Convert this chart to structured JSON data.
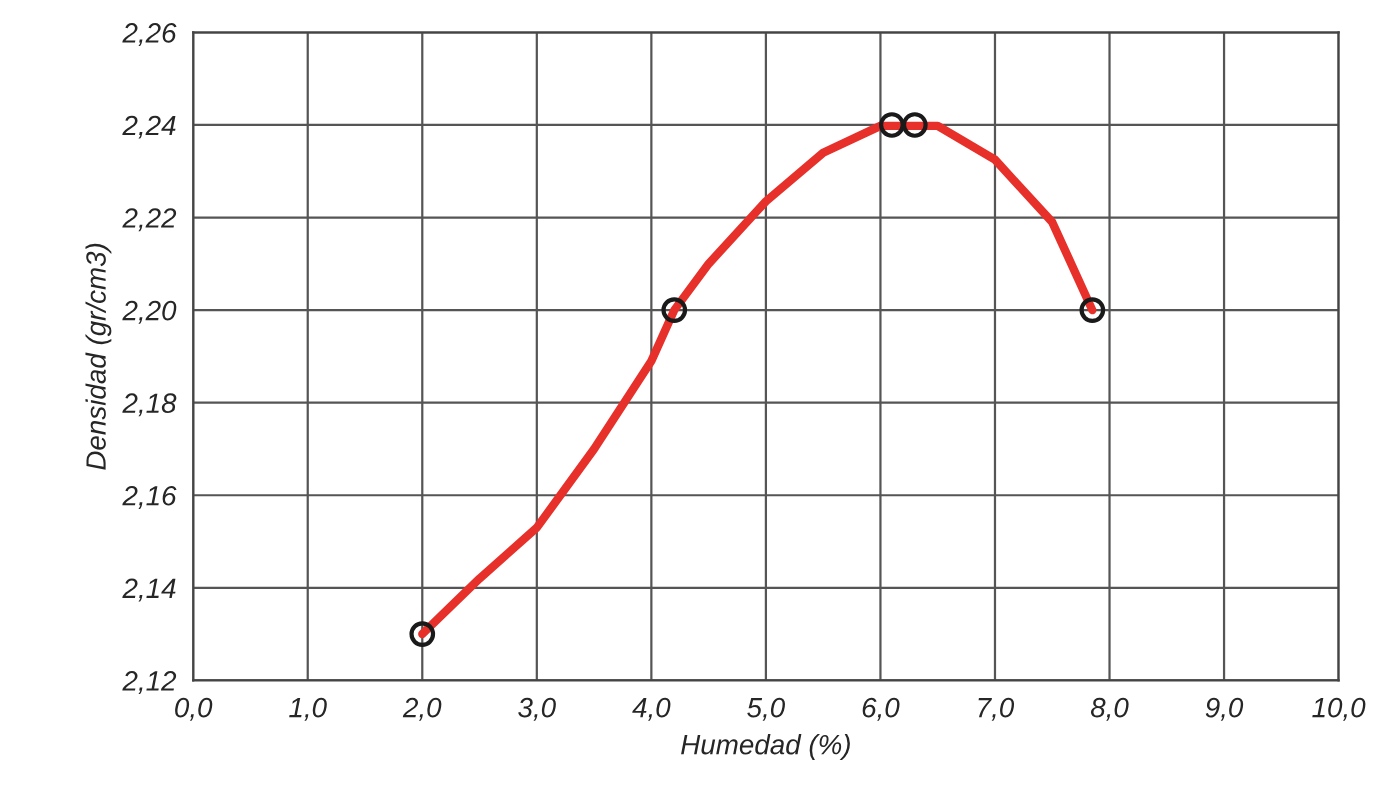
{
  "chart_data": {
    "type": "line",
    "xlabel": "Humedad (%)",
    "ylabel": "Densidad (gr/cm3)",
    "xlim": [
      0,
      10
    ],
    "ylim": [
      2.12,
      2.26
    ],
    "xticks": [
      {
        "value": 0,
        "label": "0,0"
      },
      {
        "value": 1,
        "label": "1,0"
      },
      {
        "value": 2,
        "label": "2,0"
      },
      {
        "value": 3,
        "label": "3,0"
      },
      {
        "value": 4,
        "label": "4,0"
      },
      {
        "value": 5,
        "label": "5,0"
      },
      {
        "value": 6,
        "label": "6,0"
      },
      {
        "value": 7,
        "label": "7,0"
      },
      {
        "value": 8,
        "label": "8,0"
      },
      {
        "value": 9,
        "label": "9,0"
      },
      {
        "value": 10,
        "label": "10,0"
      }
    ],
    "yticks": [
      {
        "value": 2.12,
        "label": "2,12"
      },
      {
        "value": 2.14,
        "label": "2,14"
      },
      {
        "value": 2.16,
        "label": "2,16"
      },
      {
        "value": 2.18,
        "label": "2,18"
      },
      {
        "value": 2.2,
        "label": "2,20"
      },
      {
        "value": 2.22,
        "label": "2,22"
      },
      {
        "value": 2.24,
        "label": "2,24"
      },
      {
        "value": 2.26,
        "label": "2,26"
      }
    ],
    "grid": true,
    "series": [
      {
        "color": "#e8302a",
        "x": [
          2.0,
          2.5,
          3.0,
          3.5,
          4.0,
          4.2,
          4.5,
          5.0,
          5.5,
          6.0,
          6.5,
          7.0,
          7.5,
          7.85
        ],
        "values": [
          2.13,
          2.142,
          2.153,
          2.17,
          2.189,
          2.2,
          2.21,
          2.2235,
          2.234,
          2.2398,
          2.2398,
          2.2325,
          2.219,
          2.2
        ]
      },
      {
        "type": "scatter",
        "marker": "circle",
        "color": "#1a1a1a",
        "x": [
          2.0,
          4.2,
          6.1,
          6.3,
          7.85
        ],
        "values": [
          2.13,
          2.2,
          2.24,
          2.24,
          2.2
        ]
      }
    ]
  }
}
